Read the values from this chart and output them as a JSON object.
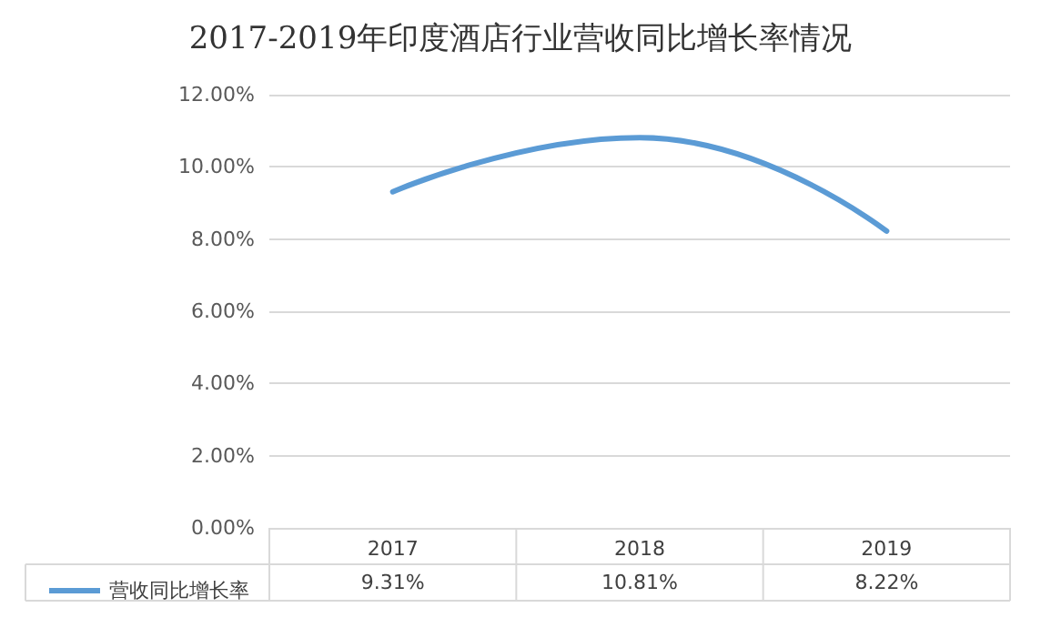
{
  "chart_data": {
    "type": "line",
    "title": "2017-2019年印度酒店行业营收同比增长率情况",
    "categories": [
      "2017",
      "2018",
      "2019"
    ],
    "series": [
      {
        "name": "营收同比增长率",
        "color": "#5b9bd5",
        "values": [
          9.31,
          10.81,
          8.22
        ],
        "value_labels": [
          "9.31%",
          "10.81%",
          "8.22%"
        ]
      }
    ],
    "ylim": [
      0,
      12
    ],
    "yticks": [
      {
        "value": 0,
        "label": "0.00%"
      },
      {
        "value": 2,
        "label": "2.00%"
      },
      {
        "value": 4,
        "label": "4.00%"
      },
      {
        "value": 6,
        "label": "6.00%"
      },
      {
        "value": 8,
        "label": "8.00%"
      },
      {
        "value": 10,
        "label": "10.00%"
      },
      {
        "value": 12,
        "label": "12.00%"
      }
    ],
    "grid": "y",
    "legend": "bottom left"
  }
}
